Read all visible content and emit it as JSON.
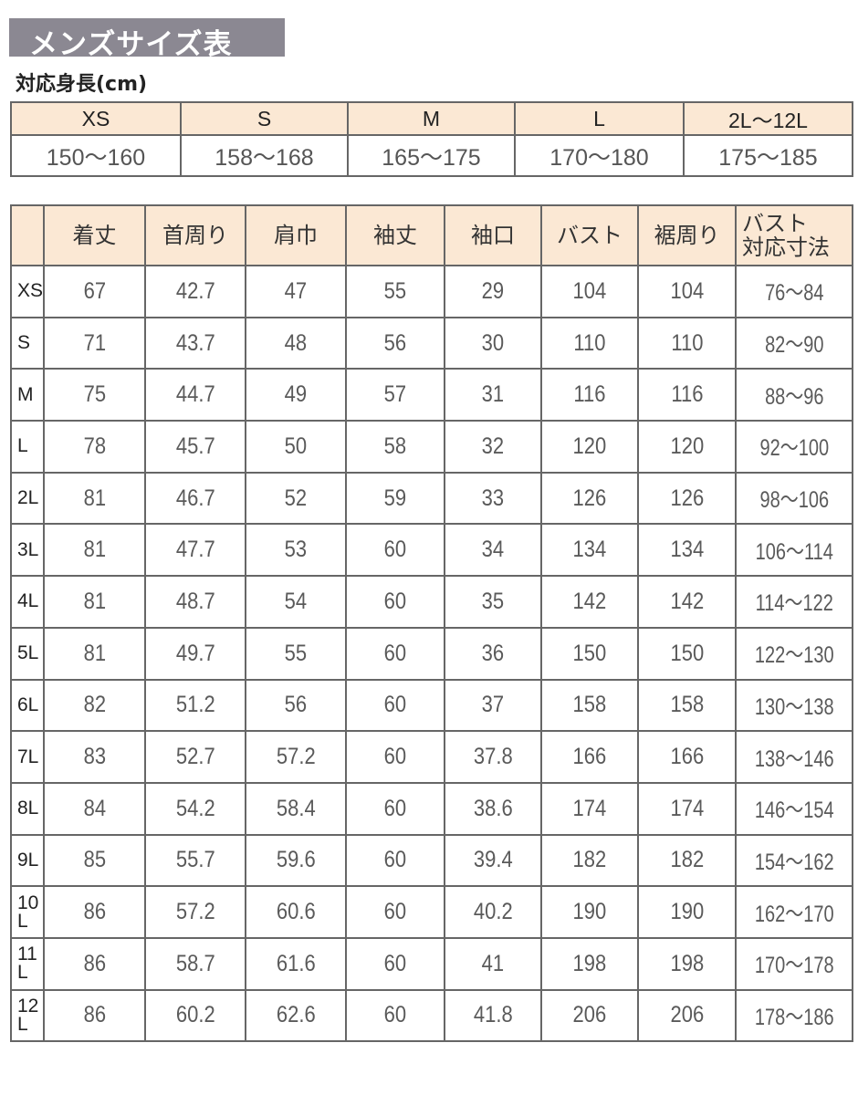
{
  "title": "メンズサイズ表",
  "height_table": {
    "caption": "対応身長(cm)",
    "sizes": [
      "XS",
      "S",
      "M",
      "L",
      "2L〜12L"
    ],
    "heights": [
      "150〜160",
      "158〜168",
      "165〜175",
      "170〜180",
      "175〜185"
    ]
  },
  "size_table": {
    "headers": [
      "",
      "着丈",
      "首周り",
      "肩巾",
      "袖丈",
      "袖口",
      "バスト",
      "裾周り",
      "バスト\n対応寸法"
    ],
    "header_last_line1": "バスト",
    "header_last_line2": "対応寸法",
    "rows": [
      {
        "size": "XS",
        "values": [
          "67",
          "42.7",
          "47",
          "55",
          "29",
          "104",
          "104",
          "76〜84"
        ]
      },
      {
        "size": "S",
        "values": [
          "71",
          "43.7",
          "48",
          "56",
          "30",
          "110",
          "110",
          "82〜90"
        ]
      },
      {
        "size": "M",
        "values": [
          "75",
          "44.7",
          "49",
          "57",
          "31",
          "116",
          "116",
          "88〜96"
        ]
      },
      {
        "size": "L",
        "values": [
          "78",
          "45.7",
          "50",
          "58",
          "32",
          "120",
          "120",
          "92〜100"
        ]
      },
      {
        "size": "2L",
        "values": [
          "81",
          "46.7",
          "52",
          "59",
          "33",
          "126",
          "126",
          "98〜106"
        ]
      },
      {
        "size": "3L",
        "values": [
          "81",
          "47.7",
          "53",
          "60",
          "34",
          "134",
          "134",
          "106〜114"
        ]
      },
      {
        "size": "4L",
        "values": [
          "81",
          "48.7",
          "54",
          "60",
          "35",
          "142",
          "142",
          "114〜122"
        ]
      },
      {
        "size": "5L",
        "values": [
          "81",
          "49.7",
          "55",
          "60",
          "36",
          "150",
          "150",
          "122〜130"
        ]
      },
      {
        "size": "6L",
        "values": [
          "82",
          "51.2",
          "56",
          "60",
          "37",
          "158",
          "158",
          "130〜138"
        ]
      },
      {
        "size": "7L",
        "values": [
          "83",
          "52.7",
          "57.2",
          "60",
          "37.8",
          "166",
          "166",
          "138〜146"
        ]
      },
      {
        "size": "8L",
        "values": [
          "84",
          "54.2",
          "58.4",
          "60",
          "38.6",
          "174",
          "174",
          "146〜154"
        ]
      },
      {
        "size": "9L",
        "values": [
          "85",
          "55.7",
          "59.6",
          "60",
          "39.4",
          "182",
          "182",
          "154〜162"
        ]
      },
      {
        "size": "10L",
        "values": [
          "86",
          "57.2",
          "60.6",
          "60",
          "40.2",
          "190",
          "190",
          "162〜170"
        ]
      },
      {
        "size": "11L",
        "values": [
          "86",
          "58.7",
          "61.6",
          "60",
          "41",
          "198",
          "198",
          "170〜178"
        ]
      },
      {
        "size": "12L",
        "values": [
          "86",
          "60.2",
          "62.6",
          "60",
          "41.8",
          "206",
          "206",
          "178〜186"
        ]
      }
    ]
  },
  "colors": {
    "title_bg": "#8b8892",
    "header_bg": "#fbe8d4",
    "border": "#666666",
    "text": "#5a5a5a"
  }
}
